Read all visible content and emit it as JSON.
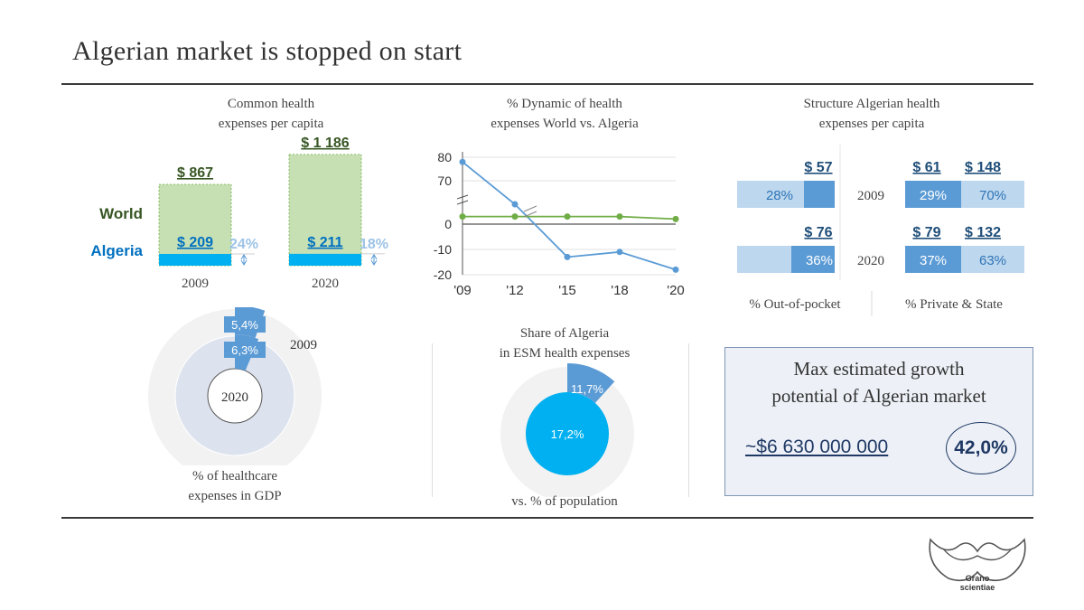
{
  "title": "Algerian market is stopped on start",
  "panel1": {
    "title_line1": "Common health",
    "title_line2": "expenses per capita",
    "world_label": "World",
    "algeria_label": "Algeria",
    "colors": {
      "world": "#c6e0b4",
      "algeria": "#00b0f0",
      "world_text": "#375623",
      "algeria_text": "#2e75b6",
      "pct_text": "#9dc3e6"
    }
  },
  "panel2": {
    "title_line1": "% Dynamic of health",
    "title_line2": "expenses World vs. Algeria"
  },
  "panel3": {
    "title_line1": "Structure Algerian health",
    "title_line2": "expenses per capita",
    "footer_left": "% Out-of-pocket",
    "footer_right": "% Private & State"
  },
  "panel4": {
    "inner_label": "2020",
    "outer_label": "2009",
    "caption_line1": "% of healthcare",
    "caption_line2": "expenses in GDP"
  },
  "panel5": {
    "title_line1": "Share of Algeria",
    "title_line2": "in ESM health expenses",
    "caption": "vs. % of population"
  },
  "growth": {
    "title_line1": "Max estimated growth",
    "title_line2": "potential of Algerian market",
    "amount": "~$6 630 000 000",
    "percent": "42,0%"
  },
  "logo": {
    "text_line1": "Grano",
    "text_line2": "scientiae"
  },
  "chart_data": [
    {
      "type": "bar",
      "title": "Common health expenses per capita",
      "categories": [
        "2009",
        "2020"
      ],
      "series": [
        {
          "name": "World",
          "values": [
            867,
            1186
          ],
          "labels": [
            "$ 867",
            "$ 1 186"
          ]
        },
        {
          "name": "Algeria",
          "values": [
            209,
            211
          ],
          "labels": [
            "$ 209",
            "$ 211"
          ]
        }
      ],
      "ratio_labels": [
        "24%",
        "18%"
      ]
    },
    {
      "type": "line",
      "title": "% Dynamic of health expenses World vs. Algeria",
      "x": [
        "'09",
        "'12",
        "'15",
        "'18",
        "'20"
      ],
      "yticks": [
        "80",
        "70",
        "0",
        "-10",
        "-20"
      ],
      "axis_break": true,
      "series": [
        {
          "color": "#5b9bd5",
          "values": [
            78,
            60,
            -13,
            -11,
            -18
          ]
        },
        {
          "color": "#70ad47",
          "values": [
            3,
            3,
            3,
            3,
            2
          ]
        }
      ]
    },
    {
      "type": "bar",
      "title": "Structure Algerian health expenses per capita",
      "categories": [
        "2009",
        "2020"
      ],
      "out_of_pocket": {
        "values": [
          57,
          76
        ],
        "labels": [
          "$ 57",
          "$ 76"
        ],
        "percent_labels": [
          "28%",
          "36%"
        ]
      },
      "private_state": {
        "values": [
          [
            61,
            148
          ],
          [
            79,
            132
          ]
        ],
        "labels": [
          [
            "$ 61",
            "$ 148"
          ],
          [
            "$ 79",
            "$ 132"
          ]
        ],
        "percent_labels": [
          [
            "29%",
            "70%"
          ],
          [
            "37%",
            "63%"
          ]
        ]
      }
    },
    {
      "type": "pie",
      "title": "% of healthcare expenses in GDP",
      "rings": [
        {
          "name": "2009",
          "value": 5.4,
          "label": "5,4%"
        },
        {
          "name": "2020",
          "value": 6.3,
          "label": "6,3%"
        }
      ]
    },
    {
      "type": "pie",
      "title": "Share of Algeria in ESM health expenses",
      "slices": [
        {
          "name": "health expenses",
          "value": 11.7,
          "label": "11,7%"
        },
        {
          "name": "population",
          "value": 17.2,
          "label": "17,2%"
        }
      ]
    }
  ]
}
